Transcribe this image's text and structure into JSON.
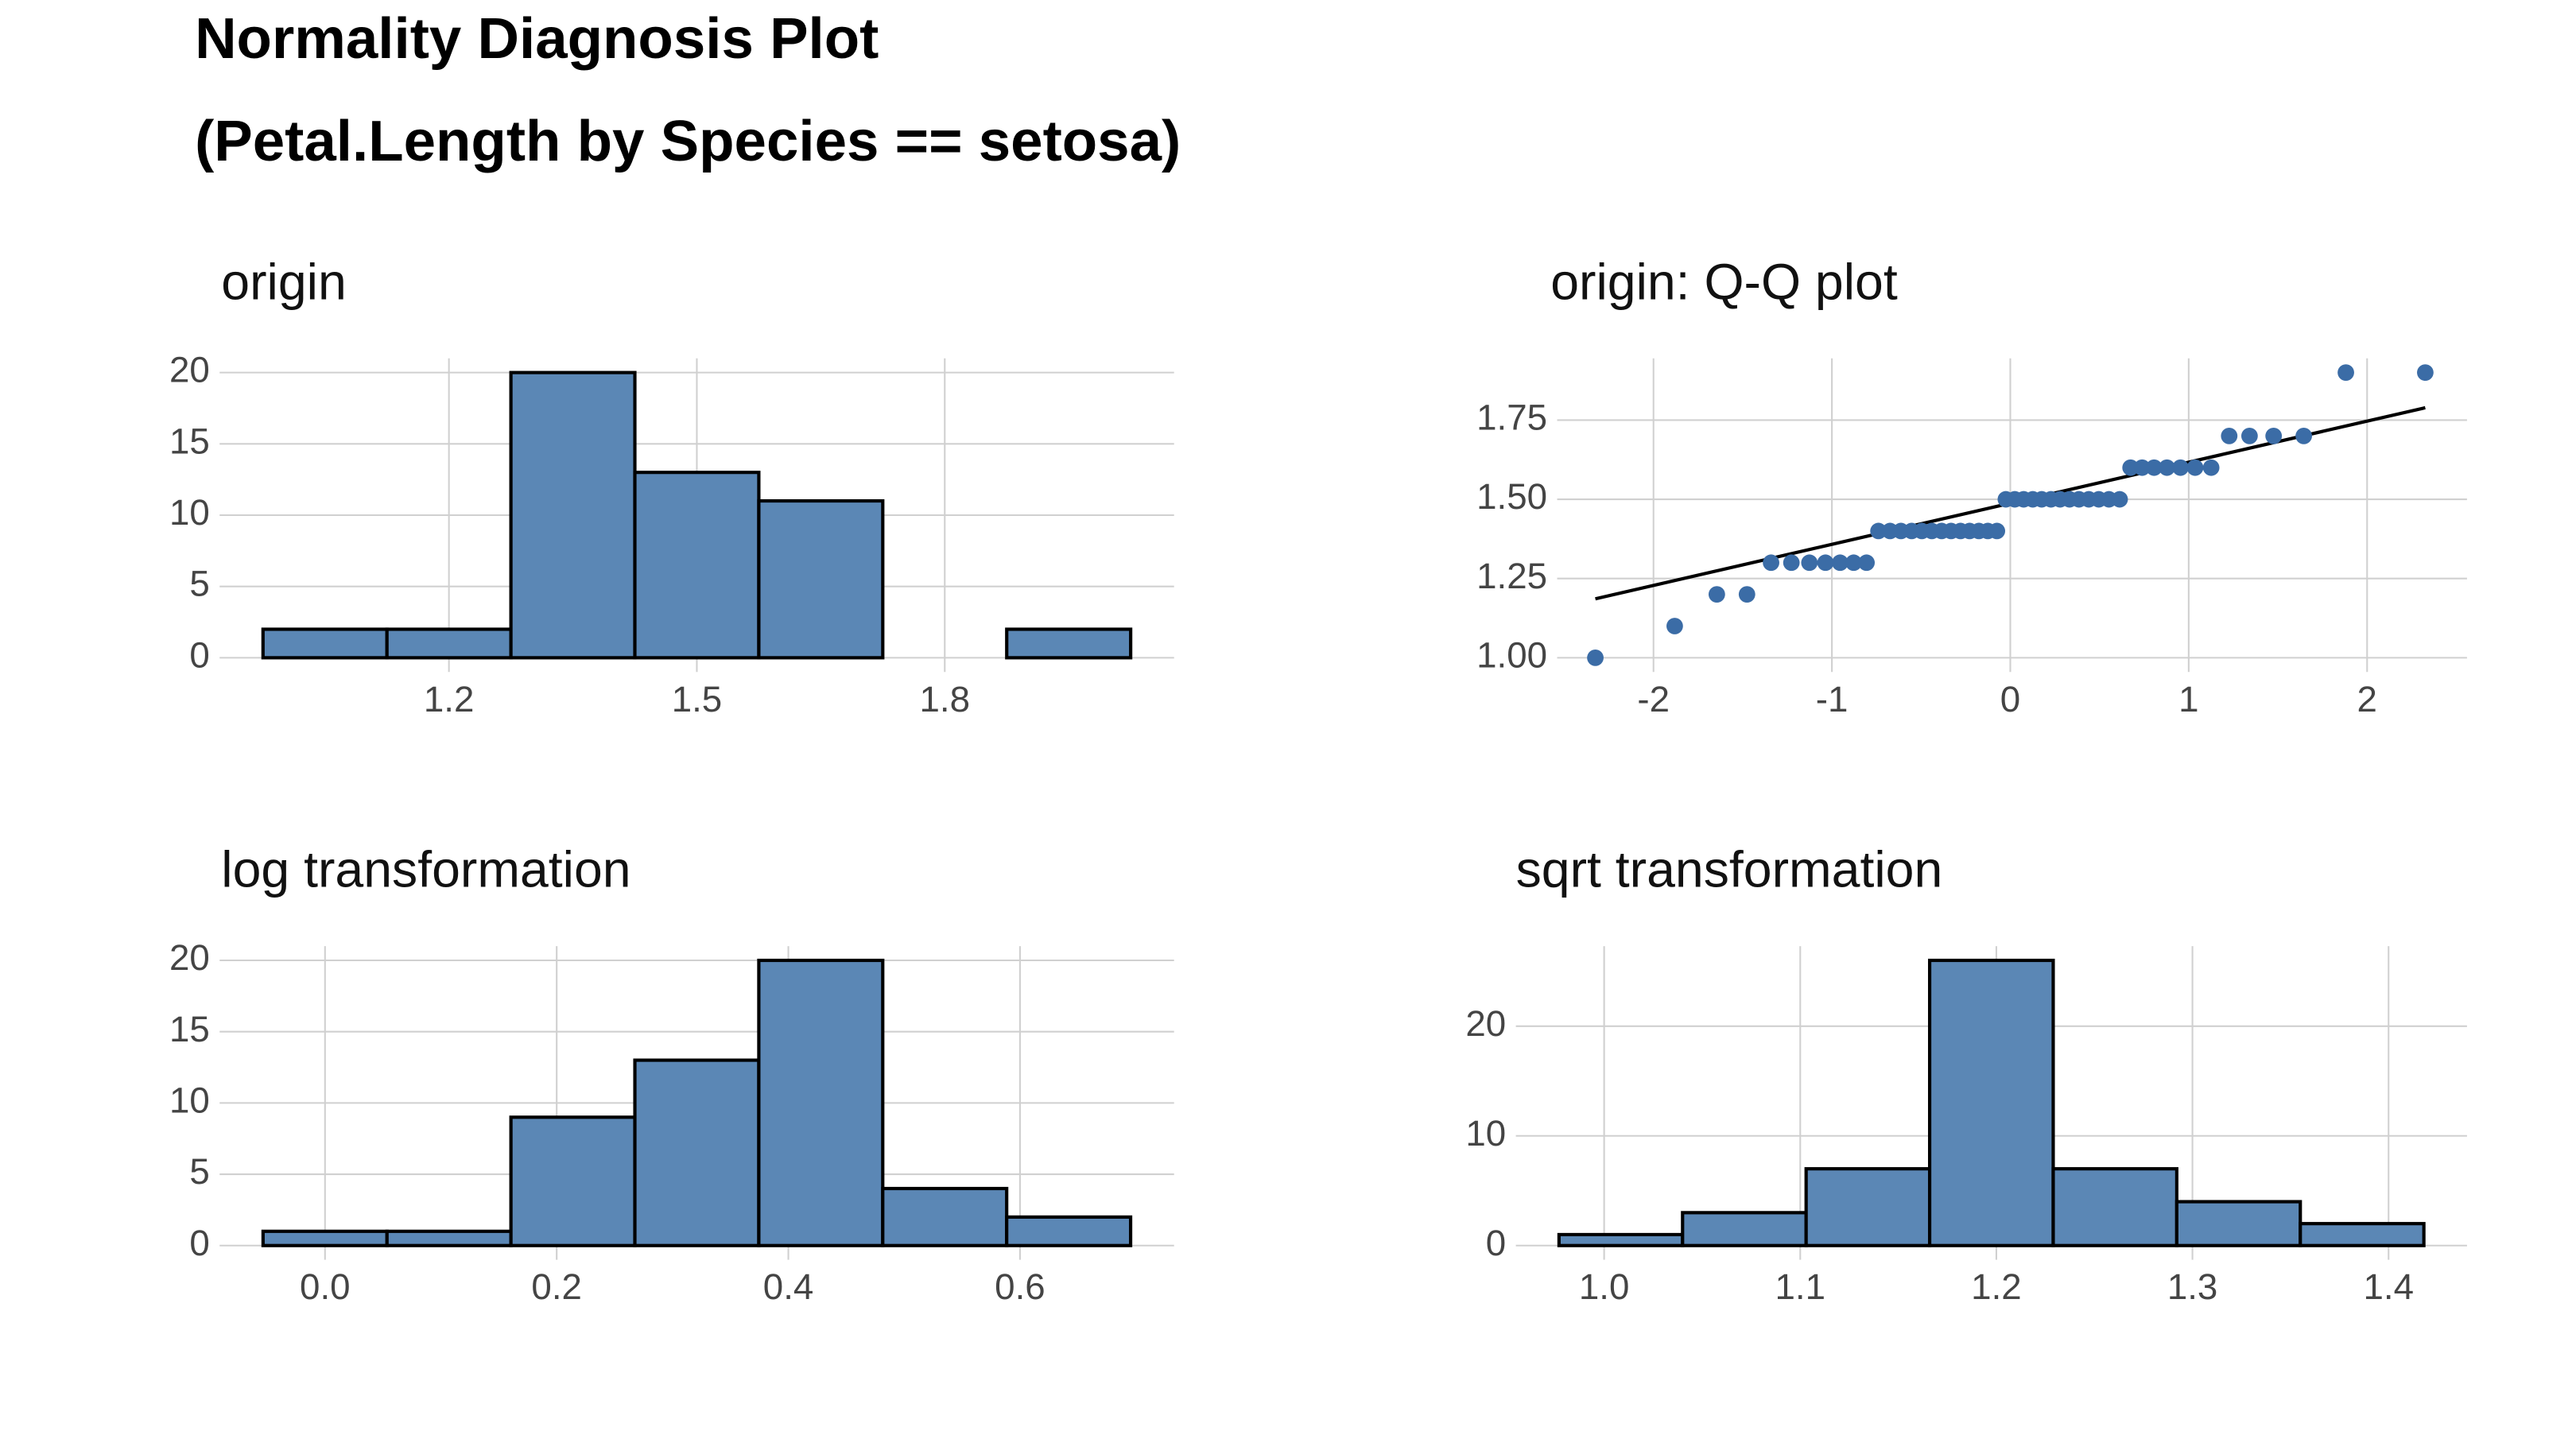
{
  "title": "Normality Diagnosis Plot",
  "subtitle": "(Petal.Length by Species == setosa)",
  "chart_data": [
    {
      "type": "histogram",
      "title": "origin",
      "bins": [
        0.975,
        1.125,
        1.275,
        1.425,
        1.575,
        1.725,
        1.875,
        2.025
      ],
      "values": [
        2,
        2,
        20,
        13,
        11,
        0,
        2
      ],
      "color": "#5b87b5",
      "xlim": [
        0.9225,
        2.0775
      ],
      "xticks": [
        1.2,
        1.5,
        1.8
      ],
      "ylim": [
        -1,
        21
      ],
      "yticks": [
        0,
        5,
        10,
        15,
        20
      ],
      "grid": true
    },
    {
      "type": "scatter",
      "title": "origin: Q-Q plot",
      "x": [
        -2.326,
        -1.881,
        -1.645,
        -1.476,
        -1.341,
        -1.227,
        -1.126,
        -1.036,
        -0.954,
        -0.878,
        -0.806,
        -0.739,
        -0.674,
        -0.613,
        -0.553,
        -0.496,
        -0.44,
        -0.385,
        -0.332,
        -0.279,
        -0.228,
        -0.176,
        -0.126,
        -0.075,
        -0.025,
        0.025,
        0.075,
        0.126,
        0.176,
        0.228,
        0.279,
        0.332,
        0.385,
        0.44,
        0.496,
        0.553,
        0.613,
        0.674,
        0.739,
        0.806,
        0.878,
        0.954,
        1.036,
        1.126,
        1.227,
        1.341,
        1.476,
        1.645,
        1.881,
        2.326
      ],
      "values": [
        1.0,
        1.1,
        1.2,
        1.2,
        1.3,
        1.3,
        1.3,
        1.3,
        1.3,
        1.3,
        1.3,
        1.4,
        1.4,
        1.4,
        1.4,
        1.4,
        1.4,
        1.4,
        1.4,
        1.4,
        1.4,
        1.4,
        1.4,
        1.4,
        1.5,
        1.5,
        1.5,
        1.5,
        1.5,
        1.5,
        1.5,
        1.5,
        1.5,
        1.5,
        1.5,
        1.5,
        1.5,
        1.6,
        1.6,
        1.6,
        1.6,
        1.6,
        1.6,
        1.6,
        1.7,
        1.7,
        1.7,
        1.7,
        1.9,
        1.9
      ],
      "color": "#3b6ca6",
      "line": {
        "x": [
          -2.326,
          2.326
        ],
        "y": [
          1.186,
          1.789
        ],
        "color": "#000000"
      },
      "xlim": [
        -2.54,
        2.56
      ],
      "xticks": [
        -2,
        -1,
        0,
        1,
        2
      ],
      "ylim": [
        0.955,
        1.945
      ],
      "yticks": [
        {
          "value": 1,
          "label": "1.00"
        },
        1.25,
        {
          "value": 1.5,
          "label": "1.50"
        },
        1.75
      ],
      "grid": true
    },
    {
      "type": "histogram",
      "title": "log transformation",
      "bins": [
        -0.0535,
        0.0535,
        0.1605,
        0.2675,
        0.3745,
        0.4815,
        0.5885,
        0.6955
      ],
      "values": [
        1,
        1,
        9,
        13,
        20,
        4,
        2
      ],
      "color": "#5b87b5",
      "xlim": [
        -0.091,
        0.733
      ],
      "xticks": [
        {
          "value": 0,
          "label": "0.0"
        },
        0.2,
        0.4,
        0.6
      ],
      "ylim": [
        -1,
        21
      ],
      "yticks": [
        0,
        5,
        10,
        15,
        20
      ],
      "grid": true
    },
    {
      "type": "histogram",
      "title": "sqrt transformation",
      "bins": [
        0.977,
        1.04,
        1.103,
        1.166,
        1.229,
        1.292,
        1.355,
        1.418
      ],
      "values": [
        1,
        3,
        7,
        26,
        7,
        4,
        2
      ],
      "color": "#5b87b5",
      "xlim": [
        0.955,
        1.44
      ],
      "xticks": [
        {
          "value": 1,
          "label": "1.0"
        },
        1.1,
        1.2,
        1.3,
        1.4
      ],
      "ylim": [
        -1.3,
        27.3
      ],
      "yticks": [
        0,
        10,
        20
      ],
      "grid": true
    }
  ]
}
